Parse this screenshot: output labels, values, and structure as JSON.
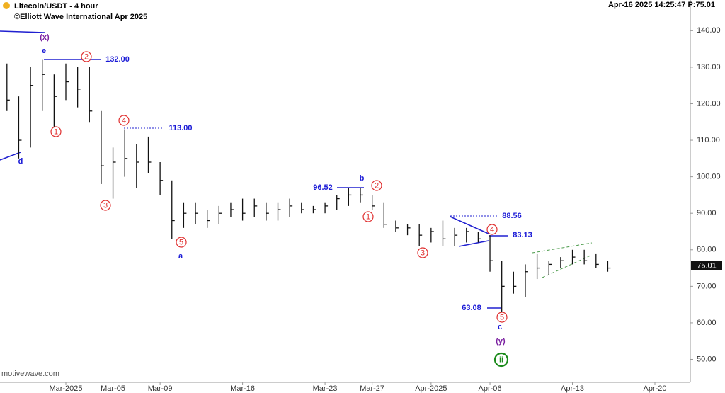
{
  "header": {
    "title": "Litecoin/USDT - 4 hour",
    "copyright": "©Elliott Wave International Apr 2025",
    "status": "Apr-16 2025  14:25:47  P:75.01",
    "last_price": "75.01",
    "watermark": "motivewave.com"
  },
  "chart_data": {
    "type": "ohlc",
    "categories": [
      null,
      null,
      null,
      null,
      null,
      "Mar-2025",
      null,
      null,
      null,
      "Mar-05",
      null,
      null,
      null,
      "Mar-09",
      null,
      null,
      null,
      null,
      null,
      null,
      "Mar-16",
      null,
      null,
      null,
      null,
      null,
      null,
      "Mar-23",
      null,
      null,
      null,
      "Mar-27",
      null,
      null,
      null,
      null,
      "Apr-2025",
      null,
      null,
      null,
      null,
      "Apr-06",
      null,
      null,
      null,
      null,
      null,
      null,
      "Apr-13",
      null,
      null,
      null,
      null,
      null,
      null,
      "Apr-20",
      null
    ],
    "high": [
      131,
      122,
      130,
      132,
      128,
      131,
      130,
      130,
      118,
      108,
      113,
      109,
      111,
      104,
      99,
      93,
      93,
      91,
      92,
      93,
      94,
      94,
      93,
      93,
      94,
      93,
      92,
      93,
      95,
      97,
      97,
      95,
      93,
      88,
      87,
      87,
      86,
      88,
      86,
      86,
      85,
      84,
      77,
      74,
      76,
      79,
      77,
      78,
      80,
      80,
      79,
      77,
      null,
      null,
      null,
      null,
      null
    ],
    "low": [
      118,
      105,
      108,
      118,
      113,
      121,
      119,
      115,
      98,
      94,
      100,
      97,
      101,
      95,
      83,
      86,
      87,
      86,
      87,
      89,
      88,
      89,
      88,
      88,
      89,
      90,
      90,
      90,
      91,
      92,
      93,
      91,
      86,
      85,
      84,
      81,
      82,
      81,
      81,
      82,
      82,
      74,
      63,
      68,
      67,
      72,
      73,
      75,
      76,
      76,
      75,
      74,
      null,
      null,
      null,
      null,
      null
    ],
    "close": [
      121,
      110,
      125,
      128,
      122,
      126,
      124,
      118,
      103,
      104,
      105,
      104,
      104,
      99,
      88,
      90,
      90,
      88,
      90,
      91,
      90,
      92,
      90,
      91,
      92,
      91,
      91,
      92,
      94,
      95,
      95,
      92,
      87,
      86,
      86,
      84,
      85,
      83,
      84,
      85,
      83,
      77,
      70,
      70,
      74,
      75,
      76,
      77,
      78,
      77,
      76,
      75,
      null,
      null,
      null,
      null,
      null
    ],
    "ylim": [
      43.7,
      148.4
    ],
    "yticks": [
      {
        "value": 50,
        "label": "50.00"
      },
      {
        "value": 60,
        "label": "60.00"
      },
      {
        "value": 70,
        "label": "70.00"
      },
      {
        "value": 80,
        "label": "80.00"
      },
      {
        "value": 90,
        "label": "90.00"
      },
      {
        "value": 100,
        "label": "100.00"
      },
      {
        "value": 110,
        "label": "110.00"
      },
      {
        "value": 120,
        "label": "120.00"
      },
      {
        "value": 130,
        "label": "130.00"
      },
      {
        "value": 140,
        "label": "140.00"
      }
    ],
    "color": "#111111",
    "annotations": [
      "(x)",
      "e",
      "d",
      "2",
      "132.00",
      "1",
      "4",
      "113.00",
      "3",
      "5",
      "a",
      "96.52",
      "b",
      "2",
      "1",
      "3",
      "88.56",
      "4",
      "83.13",
      "5",
      "63.08",
      "c",
      "(y)",
      "ii"
    ]
  }
}
